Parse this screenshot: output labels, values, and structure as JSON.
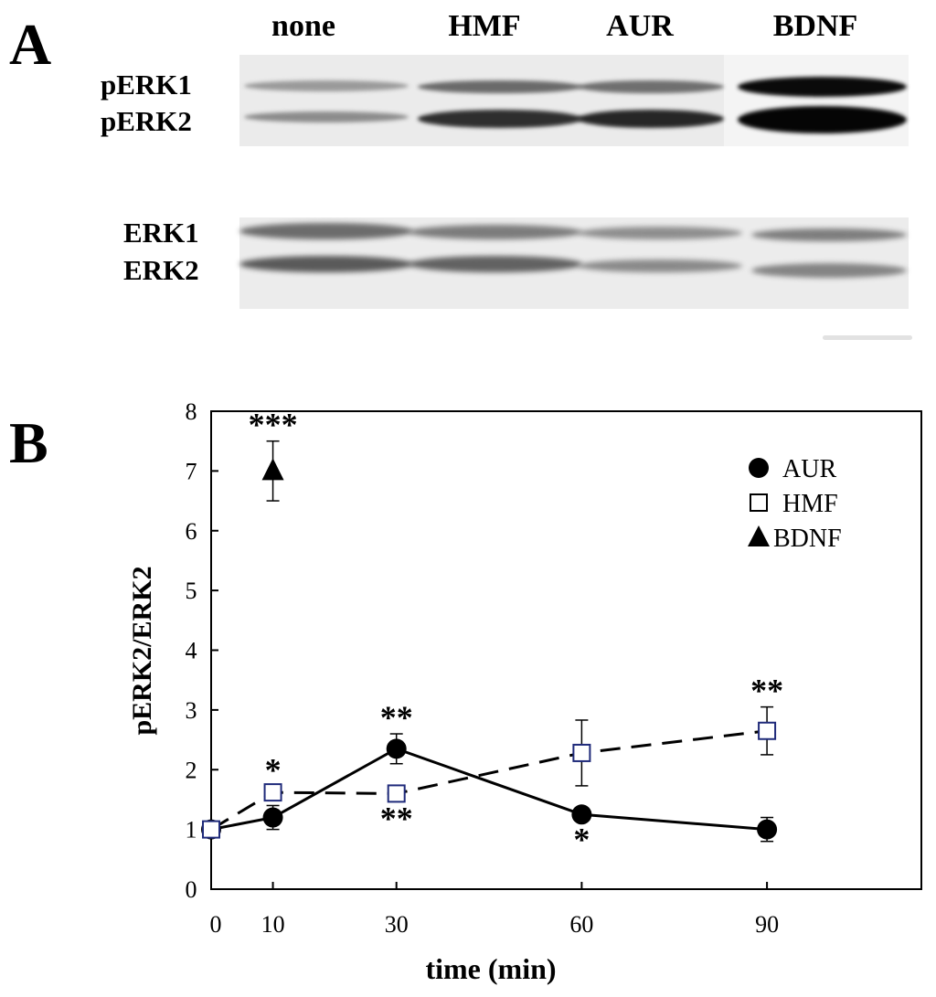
{
  "panel_a": {
    "label": "A",
    "lanes": [
      "none",
      "HMF",
      "AUR",
      "BDNF"
    ],
    "blot_top_bands": [
      "pERK1",
      "pERK2"
    ],
    "blot_bottom_bands": [
      "ERK1",
      "ERK2"
    ]
  },
  "panel_b": {
    "label": "B"
  },
  "chart_data": {
    "type": "line",
    "xlabel": "time (min)",
    "ylabel": "pERK2/ERK2",
    "xlim": [
      0,
      115
    ],
    "ylim": [
      0,
      8
    ],
    "x_ticks": [
      0,
      10,
      30,
      60,
      90
    ],
    "y_ticks": [
      0,
      1,
      2,
      3,
      4,
      5,
      6,
      7,
      8
    ],
    "legend_position": "top-right",
    "series": [
      {
        "name": "AUR",
        "marker": "filled-circle",
        "line": "solid",
        "color": "#000000",
        "x": [
          0,
          10,
          30,
          60,
          90
        ],
        "y": [
          1.0,
          1.2,
          2.35,
          1.25,
          1.0
        ],
        "err": [
          0.05,
          0.2,
          0.25,
          0.05,
          0.2
        ],
        "significance": [
          "",
          "",
          "**",
          "*",
          ""
        ],
        "sig_position": [
          "",
          "",
          "above",
          "below",
          ""
        ]
      },
      {
        "name": "HMF",
        "marker": "open-square",
        "line": "dashed",
        "color": "#1f2a7a",
        "x": [
          0,
          10,
          30,
          60,
          90
        ],
        "y": [
          1.0,
          1.62,
          1.6,
          2.28,
          2.65
        ],
        "err": [
          0.05,
          0.1,
          0.05,
          0.55,
          0.4
        ],
        "significance": [
          "",
          "*",
          "**",
          "",
          "**"
        ],
        "sig_position": [
          "",
          "above",
          "below",
          "",
          "above"
        ]
      },
      {
        "name": "BDNF",
        "marker": "filled-triangle",
        "line": "none",
        "color": "#000000",
        "x": [
          10
        ],
        "y": [
          7.0
        ],
        "err": [
          0.5
        ],
        "significance": [
          "***"
        ],
        "sig_position": [
          "above"
        ]
      }
    ]
  }
}
